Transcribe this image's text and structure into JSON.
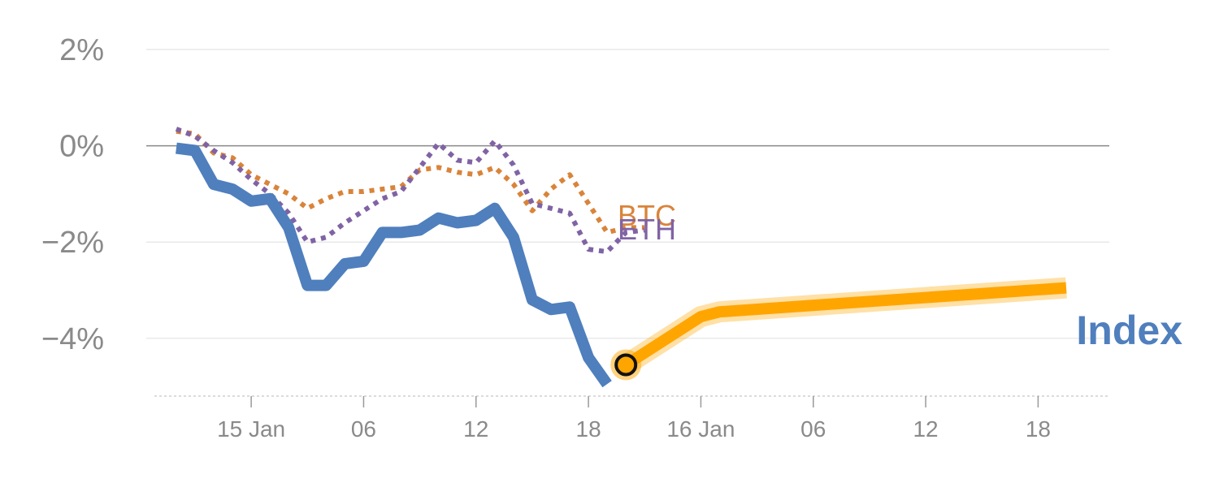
{
  "chart_data": {
    "type": "line",
    "y_unit": "%",
    "ylim": [
      -5.2,
      2
    ],
    "yticks": [
      {
        "value": 2,
        "label": "2%"
      },
      {
        "value": 0,
        "label": "0%"
      },
      {
        "value": -2,
        "label": "−2%"
      },
      {
        "value": -4,
        "label": "−4%"
      }
    ],
    "xticks": [
      {
        "hour": 0,
        "label": "15 Jan"
      },
      {
        "hour": 6,
        "label": "06"
      },
      {
        "hour": 12,
        "label": "12"
      },
      {
        "hour": 18,
        "label": "18"
      },
      {
        "hour": 24,
        "label": "16 Jan"
      },
      {
        "hour": 30,
        "label": "06"
      },
      {
        "hour": 36,
        "label": "12"
      },
      {
        "hour": 42,
        "label": "18"
      }
    ],
    "xlim": [
      -5.6,
      45.8
    ],
    "grid": true,
    "series": [
      {
        "name": "BTC",
        "color": "#d9843a",
        "style": "dotted",
        "points": [
          [
            -4,
            0.3
          ],
          [
            -3,
            0.25
          ],
          [
            -2,
            -0.15
          ],
          [
            -1,
            -0.25
          ],
          [
            0,
            -0.6
          ],
          [
            1,
            -0.8
          ],
          [
            2,
            -1.0
          ],
          [
            3,
            -1.3
          ],
          [
            4,
            -1.1
          ],
          [
            5,
            -0.95
          ],
          [
            6,
            -0.95
          ],
          [
            7,
            -0.9
          ],
          [
            8,
            -0.85
          ],
          [
            9,
            -0.5
          ],
          [
            10,
            -0.45
          ],
          [
            11,
            -0.55
          ],
          [
            12,
            -0.6
          ],
          [
            13,
            -0.45
          ],
          [
            14,
            -0.8
          ],
          [
            15,
            -1.35
          ],
          [
            16,
            -0.9
          ],
          [
            17,
            -0.6
          ],
          [
            18,
            -1.2
          ],
          [
            19,
            -1.8
          ],
          [
            20,
            -1.7
          ],
          [
            21,
            -1.7
          ]
        ]
      },
      {
        "name": "ETH",
        "color": "#8063a5",
        "style": "dotted",
        "points": [
          [
            -4,
            0.35
          ],
          [
            -3,
            0.2
          ],
          [
            -2,
            -0.1
          ],
          [
            -1,
            -0.35
          ],
          [
            0,
            -0.7
          ],
          [
            1,
            -1.0
          ],
          [
            2,
            -1.4
          ],
          [
            3,
            -2.0
          ],
          [
            4,
            -1.9
          ],
          [
            5,
            -1.6
          ],
          [
            6,
            -1.35
          ],
          [
            7,
            -1.1
          ],
          [
            8,
            -0.95
          ],
          [
            9,
            -0.45
          ],
          [
            10,
            0.05
          ],
          [
            11,
            -0.3
          ],
          [
            12,
            -0.35
          ],
          [
            13,
            0.1
          ],
          [
            14,
            -0.4
          ],
          [
            15,
            -1.2
          ],
          [
            16,
            -1.3
          ],
          [
            17,
            -1.4
          ],
          [
            18,
            -2.15
          ],
          [
            19,
            -2.2
          ],
          [
            20,
            -1.8
          ],
          [
            21,
            -1.75
          ]
        ]
      },
      {
        "name": "Index",
        "color": "#4f7fbd",
        "style": "solid",
        "points": [
          [
            -4,
            -0.05
          ],
          [
            -3,
            -0.1
          ],
          [
            -2,
            -0.8
          ],
          [
            -1,
            -0.9
          ],
          [
            0,
            -1.15
          ],
          [
            1,
            -1.1
          ],
          [
            2,
            -1.7
          ],
          [
            3,
            -2.9
          ],
          [
            4,
            -2.9
          ],
          [
            5,
            -2.45
          ],
          [
            6,
            -2.4
          ],
          [
            7,
            -1.8
          ],
          [
            8,
            -1.8
          ],
          [
            9,
            -1.75
          ],
          [
            10,
            -1.5
          ],
          [
            11,
            -1.6
          ],
          [
            12,
            -1.55
          ],
          [
            13,
            -1.3
          ],
          [
            14,
            -1.9
          ],
          [
            15,
            -3.2
          ],
          [
            16,
            -3.4
          ],
          [
            17,
            -3.35
          ],
          [
            18,
            -4.4
          ],
          [
            19,
            -4.95
          ]
        ]
      },
      {
        "name": "",
        "color": "#ffa500",
        "style": "forecast",
        "points": [
          [
            20,
            -4.55
          ],
          [
            24,
            -3.55
          ],
          [
            25,
            -3.45
          ],
          [
            43.5,
            -2.95
          ]
        ]
      }
    ],
    "marker": {
      "x": 20,
      "y": -4.55
    },
    "labels": {
      "btc": "BTC",
      "eth": "ETH",
      "index": "Index"
    }
  }
}
